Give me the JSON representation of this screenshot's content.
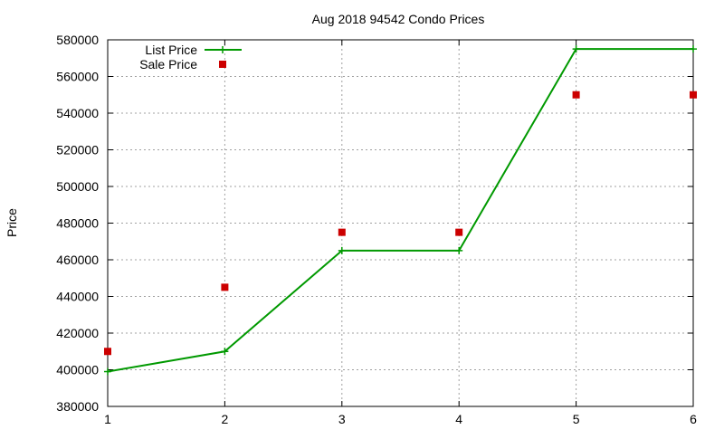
{
  "chart_data": {
    "type": "line",
    "title": "Aug 2018 94542 Condo Prices",
    "xlabel": "",
    "ylabel": "Price",
    "x": [
      1,
      2,
      3,
      4,
      5,
      6
    ],
    "xlim": [
      1,
      6
    ],
    "ylim": [
      380000,
      580000
    ],
    "xticks": [
      1,
      2,
      3,
      4,
      5,
      6
    ],
    "yticks": [
      380000,
      400000,
      420000,
      440000,
      460000,
      480000,
      500000,
      520000,
      540000,
      560000,
      580000
    ],
    "grid": true,
    "legend_position": "top-left",
    "series": [
      {
        "name": "List Price",
        "kind": "line",
        "marker": "plus",
        "color": "#009900",
        "values": [
          399000,
          410000,
          465000,
          465000,
          575000,
          575000
        ]
      },
      {
        "name": "Sale Price",
        "kind": "scatter",
        "marker": "square",
        "color": "#cc0000",
        "values": [
          410000,
          445000,
          475000,
          475000,
          550000,
          550000
        ]
      }
    ]
  }
}
